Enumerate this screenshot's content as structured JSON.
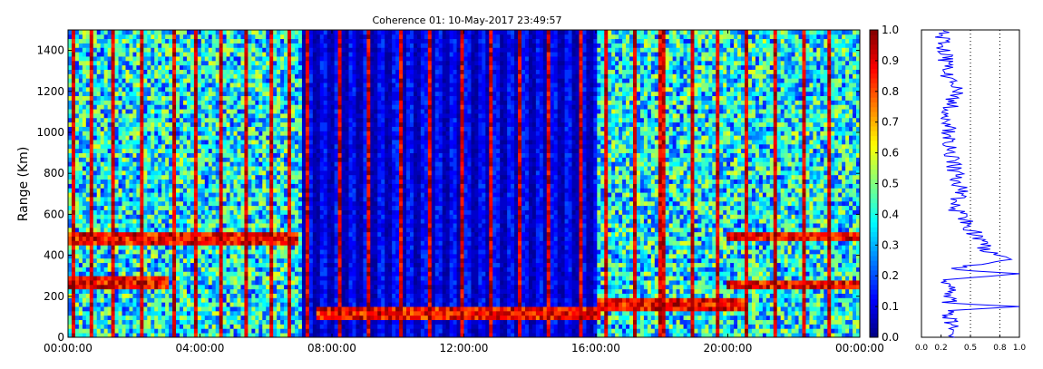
{
  "chart_data": [
    {
      "type": "heatmap",
      "title": "Coherence 01: 10-May-2017 23:49:57",
      "ylabel": "Range (Km)",
      "xlabel": "",
      "xlim_hours": [
        0,
        24
      ],
      "ylim": [
        0,
        1500
      ],
      "x_ticks": [
        "00:00:00",
        "04:00:00",
        "08:00:00",
        "12:00:00",
        "16:00:00",
        "20:00:00",
        "00:00:00"
      ],
      "y_ticks": [
        0,
        200,
        400,
        600,
        800,
        1000,
        1200,
        1400
      ],
      "colorscale": "jet",
      "value_range": [
        0.0,
        1.0
      ],
      "colorbar_ticks": [
        "0.0",
        "0.1",
        "0.2",
        "0.3",
        "0.4",
        "0.5",
        "0.6",
        "0.7",
        "0.8",
        "0.9",
        "1.0"
      ],
      "features": {
        "dark_band_hours": [
          7.1,
          16.0
        ],
        "red_stripe_hours": [
          0.2,
          0.7,
          1.4,
          2.2,
          3.2,
          3.9,
          4.6,
          5.4,
          6.2,
          6.7,
          7.3,
          8.2,
          9.1,
          10.1,
          11.0,
          11.9,
          12.8,
          13.7,
          14.6,
          15.5,
          16.3,
          17.2,
          18.0,
          18.9,
          19.7,
          20.6,
          21.4,
          22.3,
          23.1
        ],
        "echo_layers_km": [
          {
            "from_h": 0,
            "to_h": 7,
            "range_km": 480
          },
          {
            "from_h": 0,
            "to_h": 3,
            "range_km": 270
          },
          {
            "from_h": 7.5,
            "to_h": 16.2,
            "range_km": 120
          },
          {
            "from_h": 16,
            "to_h": 20.5,
            "range_km": 160
          },
          {
            "from_h": 20,
            "to_h": 24,
            "range_km": 490
          },
          {
            "from_h": 20,
            "to_h": 24,
            "range_km": 250
          }
        ]
      }
    },
    {
      "type": "line",
      "title": "",
      "x_ticks": [
        "0.0",
        "0.2",
        "0.5",
        "0.8",
        "1.0"
      ],
      "xlim": [
        0,
        1
      ],
      "ylim": [
        0,
        1500
      ],
      "grid_x": [
        0.5,
        0.8
      ],
      "profile": [
        [
          0,
          0.28
        ],
        [
          60,
          0.3
        ],
        [
          130,
          0.27
        ],
        [
          150,
          1.0
        ],
        [
          165,
          0.3
        ],
        [
          230,
          0.28
        ],
        [
          280,
          0.22
        ],
        [
          310,
          1.0
        ],
        [
          330,
          0.3
        ],
        [
          380,
          0.85
        ],
        [
          430,
          0.65
        ],
        [
          500,
          0.55
        ],
        [
          560,
          0.45
        ],
        [
          620,
          0.35
        ],
        [
          700,
          0.4
        ],
        [
          780,
          0.38
        ],
        [
          850,
          0.32
        ],
        [
          950,
          0.28
        ],
        [
          1050,
          0.26
        ],
        [
          1150,
          0.3
        ],
        [
          1210,
          0.35
        ],
        [
          1300,
          0.25
        ],
        [
          1400,
          0.24
        ],
        [
          1500,
          0.22
        ]
      ]
    }
  ]
}
